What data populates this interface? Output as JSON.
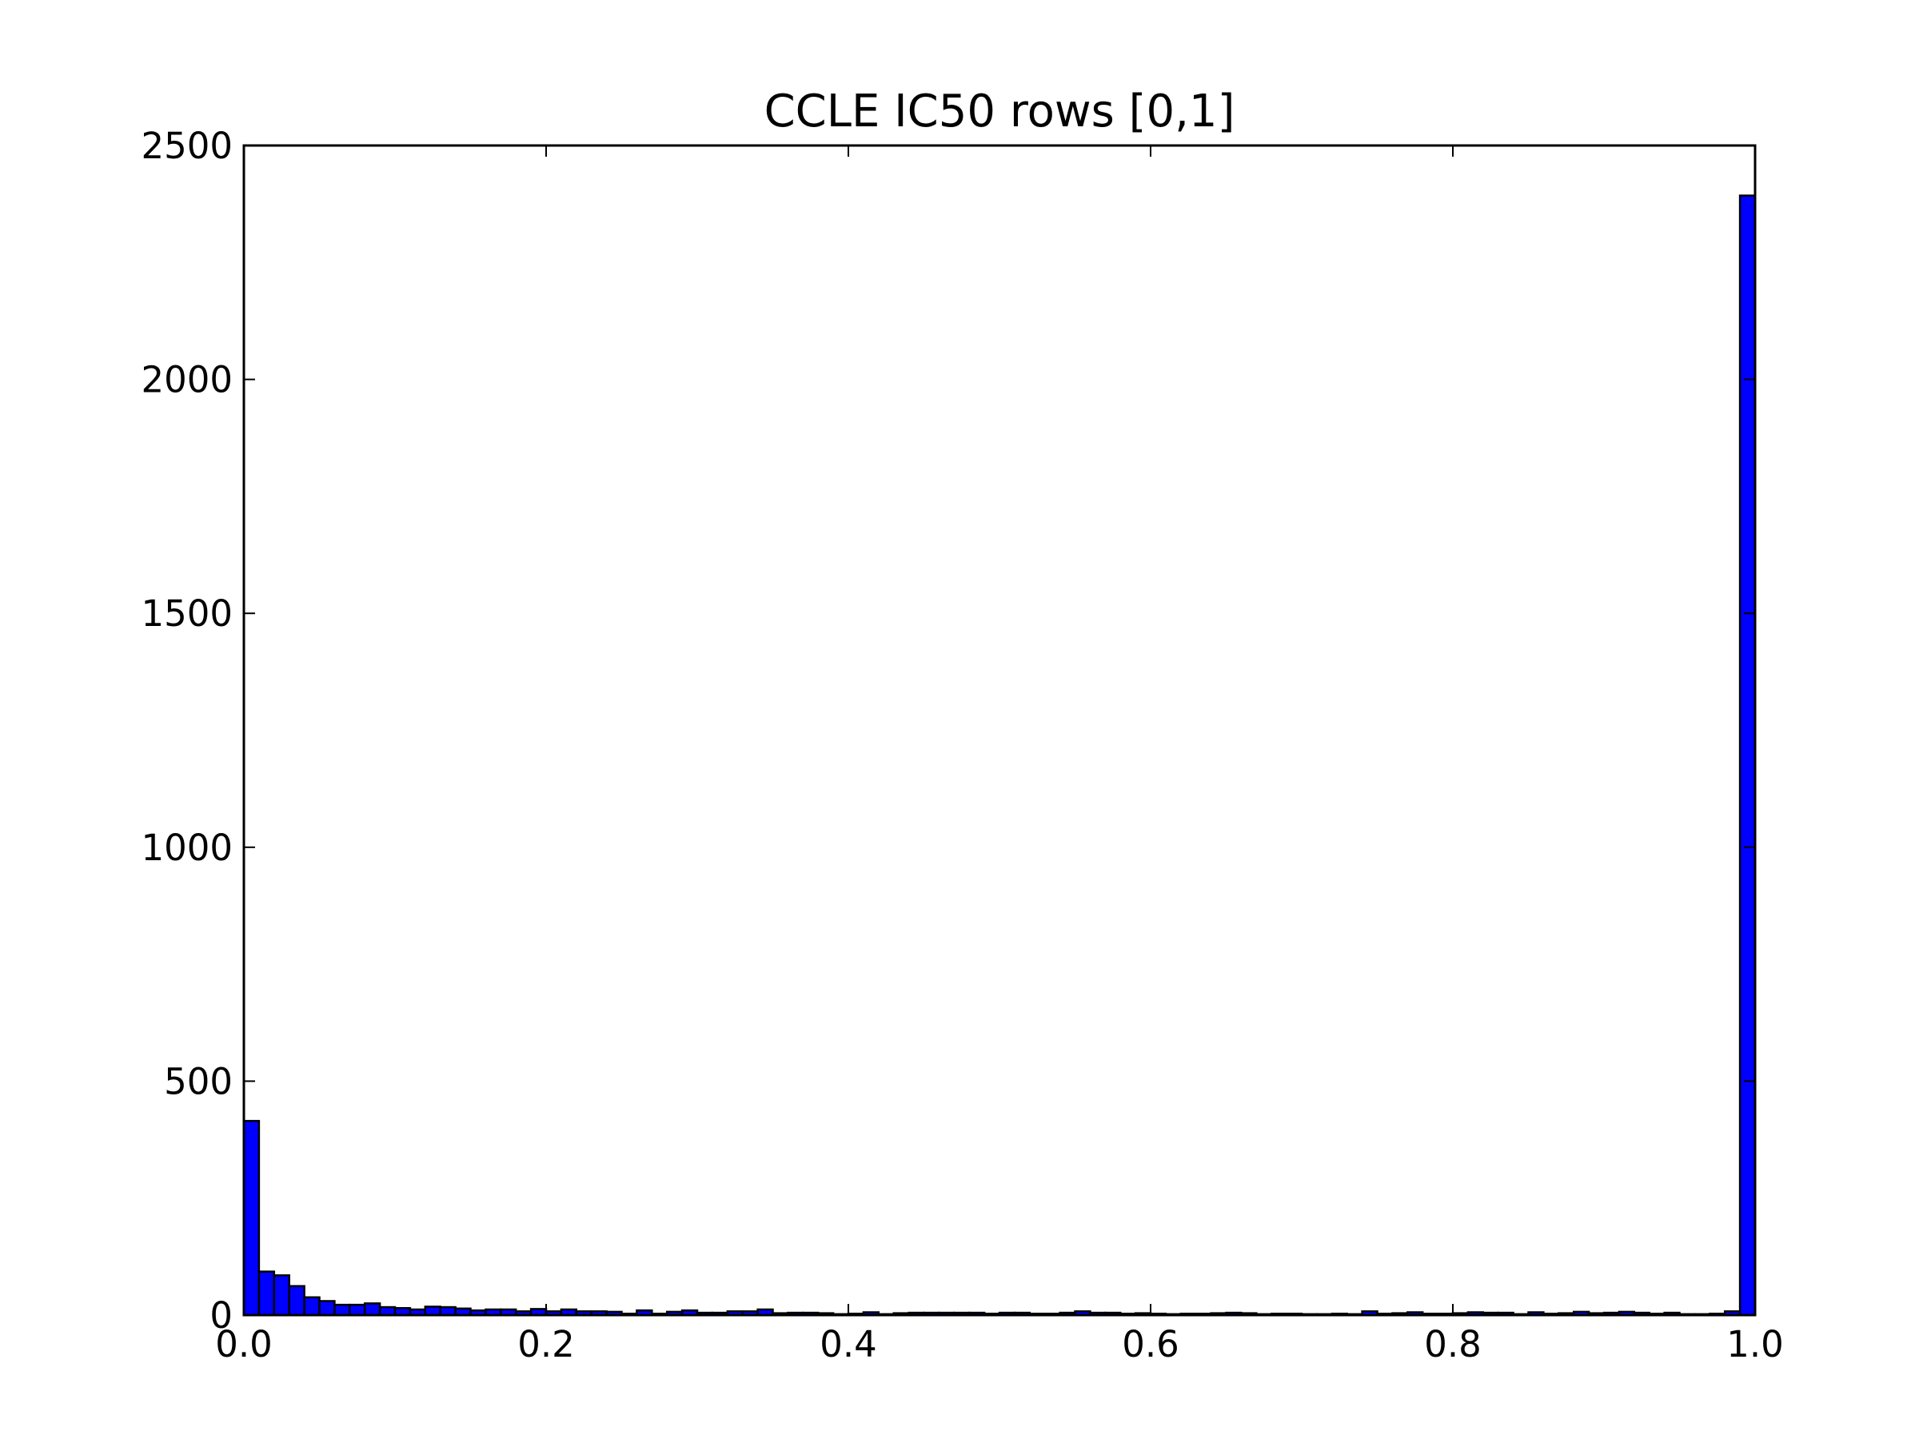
{
  "chart_data": {
    "type": "bar",
    "title": "CCLE IC50 rows [0,1]",
    "xlabel": "",
    "ylabel": "",
    "xlim": [
      0.0,
      1.0
    ],
    "ylim": [
      0,
      2500
    ],
    "grid": false,
    "bar_color": "#0000ff",
    "edge_color": "#000000",
    "x_ticks": [
      "0.0",
      "0.2",
      "0.4",
      "0.6",
      "0.8",
      "1.0"
    ],
    "y_ticks": [
      "0",
      "500",
      "1000",
      "1500",
      "2000",
      "2500"
    ],
    "bin_width": 0.01,
    "bin_starts": [
      0.0,
      0.01,
      0.02,
      0.03,
      0.04,
      0.05,
      0.06,
      0.07,
      0.08,
      0.09,
      0.1,
      0.11,
      0.12,
      0.13,
      0.14,
      0.15,
      0.16,
      0.17,
      0.18,
      0.19,
      0.2,
      0.21,
      0.22,
      0.23,
      0.24,
      0.25,
      0.26,
      0.27,
      0.28,
      0.29,
      0.3,
      0.31,
      0.32,
      0.33,
      0.34,
      0.35,
      0.36,
      0.37,
      0.38,
      0.39,
      0.4,
      0.41,
      0.42,
      0.43,
      0.44,
      0.45,
      0.46,
      0.47,
      0.48,
      0.49,
      0.5,
      0.51,
      0.52,
      0.53,
      0.54,
      0.55,
      0.56,
      0.57,
      0.58,
      0.59,
      0.6,
      0.61,
      0.62,
      0.63,
      0.64,
      0.65,
      0.66,
      0.67,
      0.68,
      0.69,
      0.7,
      0.71,
      0.72,
      0.73,
      0.74,
      0.75,
      0.76,
      0.77,
      0.78,
      0.79,
      0.8,
      0.81,
      0.82,
      0.83,
      0.84,
      0.85,
      0.86,
      0.87,
      0.88,
      0.89,
      0.9,
      0.91,
      0.92,
      0.93,
      0.94,
      0.95,
      0.96,
      0.97,
      0.98,
      0.99
    ],
    "values": [
      415,
      93,
      85,
      62,
      38,
      30,
      22,
      22,
      25,
      17,
      15,
      12,
      18,
      17,
      14,
      10,
      12,
      12,
      8,
      13,
      8,
      12,
      8,
      8,
      7,
      3,
      10,
      3,
      7,
      10,
      5,
      5,
      8,
      8,
      12,
      4,
      5,
      5,
      4,
      2,
      3,
      6,
      2,
      4,
      5,
      5,
      5,
      5,
      5,
      3,
      5,
      5,
      3,
      3,
      5,
      8,
      5,
      5,
      3,
      4,
      3,
      2,
      3,
      3,
      4,
      5,
      4,
      2,
      3,
      3,
      2,
      2,
      3,
      2,
      8,
      3,
      4,
      6,
      3,
      3,
      4,
      6,
      5,
      5,
      2,
      6,
      3,
      4,
      7,
      4,
      5,
      7,
      5,
      3,
      5,
      2,
      2,
      3,
      8,
      2393
    ]
  }
}
